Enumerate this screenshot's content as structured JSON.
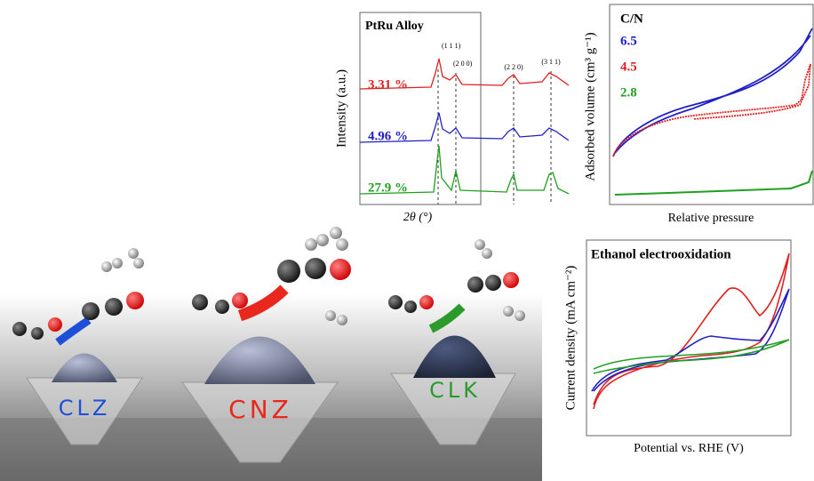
{
  "xrd": {
    "title": "PtRu Alloy",
    "y_label": "Intensity (a.u.)",
    "x_label": "2θ (°)",
    "peaks": [
      "(1 1 1)",
      "(2 0 0)",
      "(2 2 0)",
      "(3 1 1)"
    ],
    "samples": [
      "3.31 %",
      "4.96 %",
      "27.9 %"
    ]
  },
  "sorption": {
    "title": "C/N",
    "y_label": "Adsorbed volume (cm³ g⁻¹)",
    "x_label": "Relative pressure",
    "samples": [
      "6.5",
      "4.5",
      "2.8"
    ]
  },
  "cv": {
    "title": "Ethanol electrooxidation",
    "y_label": "Current density (mA cm⁻²)",
    "x_label": "Potential vs. RHE (V)"
  },
  "illustration": {
    "labels": [
      "CLZ",
      "CNZ",
      "CLK"
    ]
  }
}
